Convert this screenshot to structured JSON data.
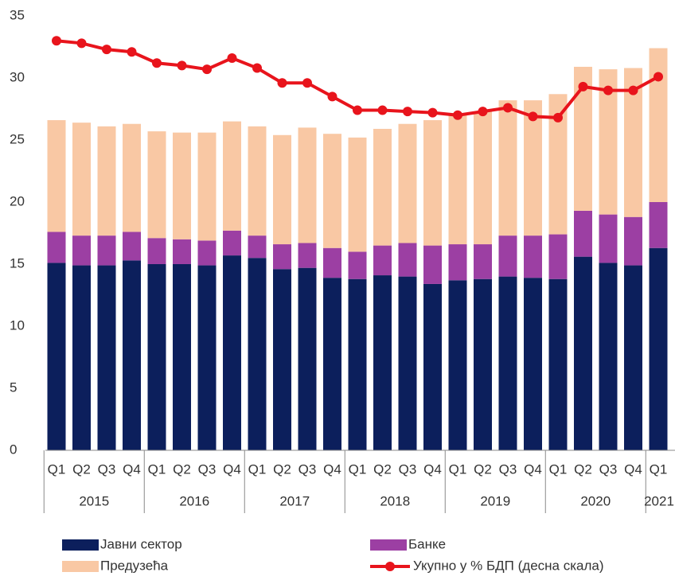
{
  "chart_data": {
    "type": "bar",
    "categories": [
      "Q1",
      "Q2",
      "Q3",
      "Q4",
      "Q1",
      "Q2",
      "Q3",
      "Q4",
      "Q1",
      "Q2",
      "Q3",
      "Q4",
      "Q1",
      "Q2",
      "Q3",
      "Q4",
      "Q1",
      "Q2",
      "Q3",
      "Q4",
      "Q1",
      "Q2",
      "Q3",
      "Q4",
      "Q1"
    ],
    "years": [
      "2015",
      null,
      null,
      null,
      "2016",
      null,
      null,
      null,
      "2017",
      null,
      null,
      null,
      "2018",
      null,
      null,
      null,
      "2019",
      null,
      null,
      null,
      "2020",
      null,
      null,
      null,
      "2021"
    ],
    "series": [
      {
        "name": "Јавни сектор",
        "type": "bar",
        "color": "#0c1f5c",
        "values": [
          15.1,
          14.9,
          14.9,
          15.3,
          15.0,
          15.0,
          14.9,
          15.7,
          15.5,
          14.6,
          14.7,
          13.9,
          13.8,
          14.1,
          14.0,
          13.4,
          13.7,
          13.8,
          14.0,
          13.9,
          13.8,
          15.6,
          15.1,
          14.9,
          16.3
        ]
      },
      {
        "name": "Банке",
        "type": "bar",
        "color": "#9c3fa3",
        "values": [
          2.5,
          2.4,
          2.4,
          2.3,
          2.1,
          2.0,
          2.0,
          2.0,
          1.8,
          2.0,
          2.0,
          2.4,
          2.2,
          2.4,
          2.7,
          3.1,
          2.9,
          2.8,
          3.3,
          3.4,
          3.6,
          3.7,
          3.9,
          3.9,
          3.7
        ]
      },
      {
        "name": "Предузећа",
        "type": "bar",
        "color": "#f9c8a4",
        "values": [
          9.0,
          9.1,
          8.8,
          8.7,
          8.6,
          8.6,
          8.7,
          8.8,
          8.8,
          8.8,
          9.3,
          9.2,
          9.2,
          9.4,
          9.6,
          10.1,
          10.4,
          10.7,
          10.9,
          10.9,
          11.3,
          11.6,
          11.7,
          12.0,
          12.4
        ]
      },
      {
        "name": "Укупно у % БДП (десна скала)",
        "type": "line",
        "color": "#e8141c",
        "values": [
          33.0,
          32.8,
          32.3,
          32.1,
          31.2,
          31.0,
          30.7,
          31.6,
          30.8,
          29.6,
          29.6,
          28.5,
          27.4,
          27.4,
          27.3,
          27.2,
          27.0,
          27.3,
          27.6,
          26.9,
          26.8,
          29.3,
          29.0,
          29.0,
          30.1
        ]
      }
    ],
    "ylim": [
      0,
      35
    ],
    "yticks": [
      0,
      5,
      10,
      15,
      20,
      25,
      30,
      35
    ],
    "grid": false,
    "legend": "bottom"
  }
}
